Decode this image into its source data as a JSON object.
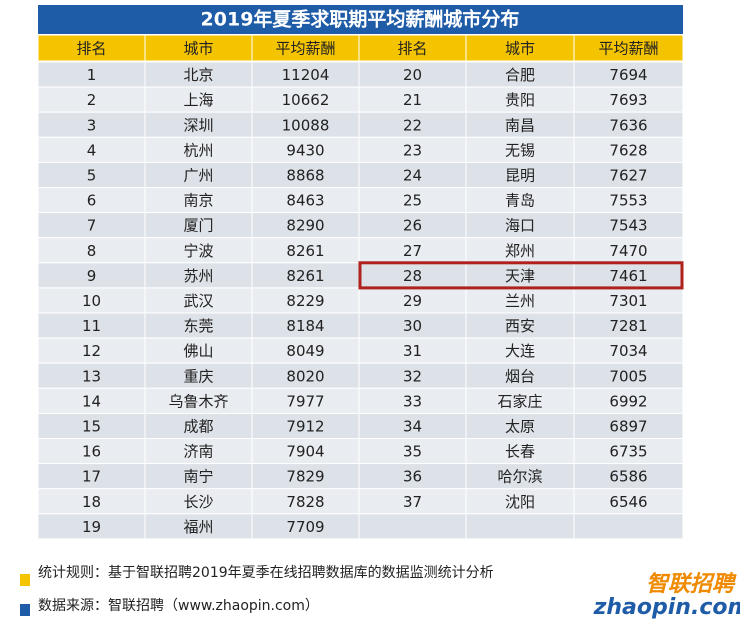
{
  "title": "2019年夏季求职期平均薪酬城市分布",
  "table": {
    "columns": [
      "排名",
      "城市",
      "平均薪酬",
      "排名",
      "城市",
      "平均薪酬"
    ],
    "left_rows": [
      [
        1,
        "北京",
        11204
      ],
      [
        2,
        "上海",
        10662
      ],
      [
        3,
        "深圳",
        10088
      ],
      [
        4,
        "杭州",
        9430
      ],
      [
        5,
        "广州",
        8868
      ],
      [
        6,
        "南京",
        8463
      ],
      [
        7,
        "厦门",
        8290
      ],
      [
        8,
        "宁波",
        8261
      ],
      [
        9,
        "苏州",
        8261
      ],
      [
        10,
        "武汉",
        8229
      ],
      [
        11,
        "东莞",
        8184
      ],
      [
        12,
        "佛山",
        8049
      ],
      [
        13,
        "重庆",
        8020
      ],
      [
        14,
        "乌鲁木齐",
        7977
      ],
      [
        15,
        "成都",
        7912
      ],
      [
        16,
        "济南",
        7904
      ],
      [
        17,
        "南宁",
        7829
      ],
      [
        18,
        "长沙",
        7828
      ],
      [
        19,
        "福州",
        7709
      ]
    ],
    "right_rows": [
      [
        20,
        "合肥",
        7694
      ],
      [
        21,
        "贵阳",
        7693
      ],
      [
        22,
        "南昌",
        7636
      ],
      [
        23,
        "无锡",
        7628
      ],
      [
        24,
        "昆明",
        7627
      ],
      [
        25,
        "青岛",
        7553
      ],
      [
        26,
        "海口",
        7543
      ],
      [
        27,
        "郑州",
        7470
      ],
      [
        28,
        "天津",
        7461
      ],
      [
        29,
        "兰州",
        7301
      ],
      [
        30,
        "西安",
        7281
      ],
      [
        31,
        "大连",
        7034
      ],
      [
        32,
        "烟台",
        7005
      ],
      [
        33,
        "石家庄",
        6992
      ],
      [
        34,
        "太原",
        6897
      ],
      [
        35,
        "长春",
        6735
      ],
      [
        36,
        "哈尔滨",
        6586
      ],
      [
        37,
        "沈阳",
        6546
      ]
    ]
  },
  "footer": {
    "rule": "统计规则：基于智联招聘2019年夏季在线招聘数据库的数据监测统计分析",
    "source": "数据来源：智联招聘（www.zhaopin.com）"
  },
  "logo": {
    "brand": "智联招聘",
    "domain": "zhaopin.com"
  }
}
